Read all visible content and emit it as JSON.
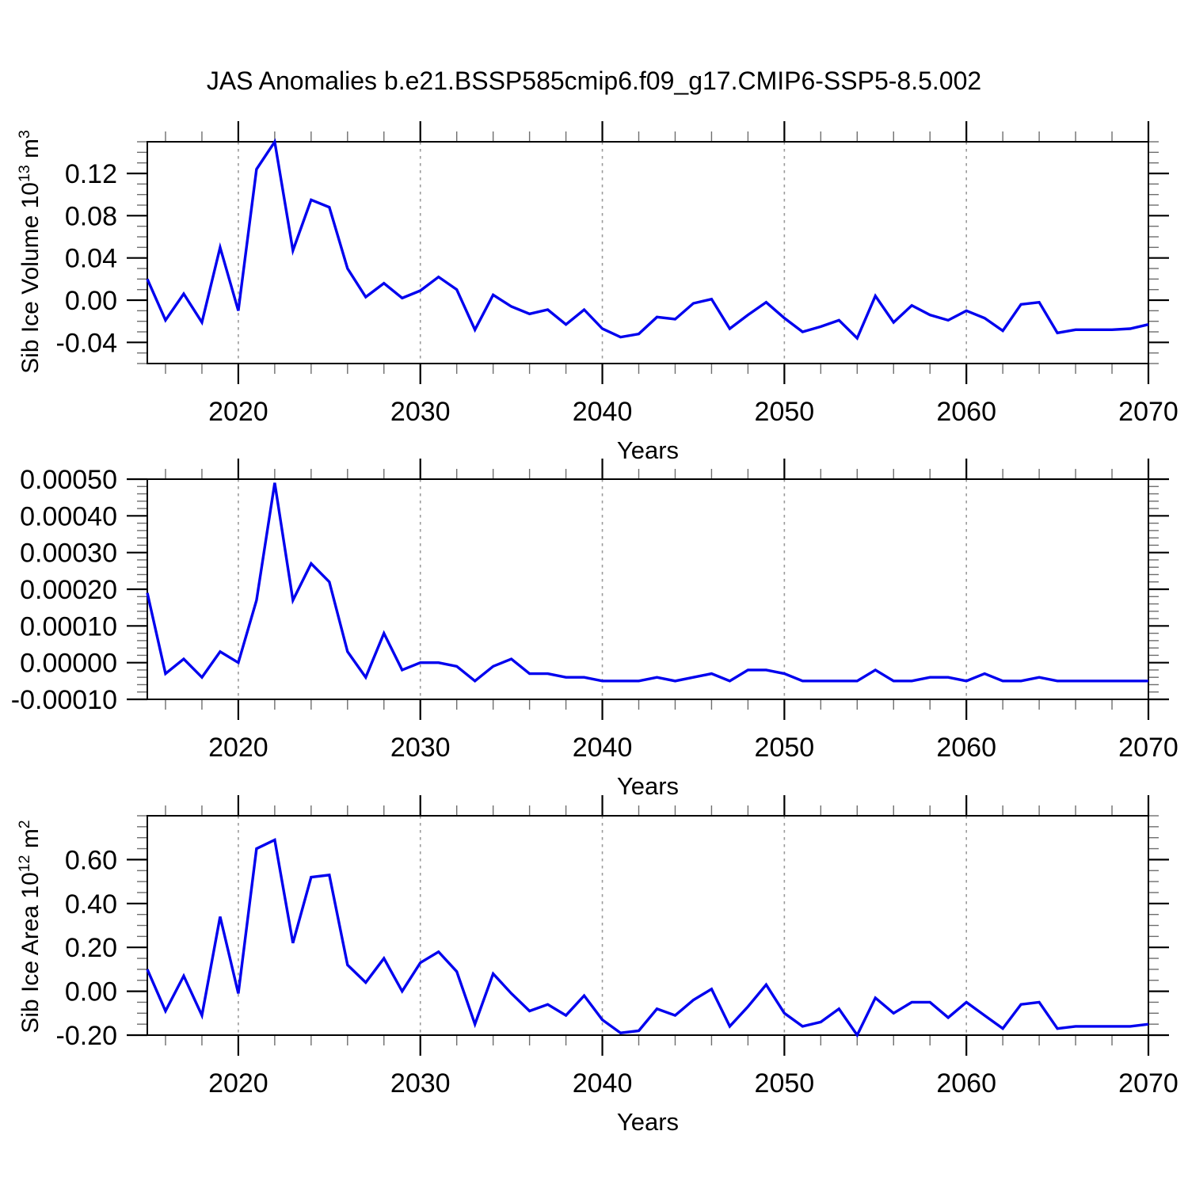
{
  "title": "JAS Anomalies b.e21.BSSP585cmip6.f09_g17.CMIP6-SSP5-8.5.002",
  "colors": {
    "line": "#0000ee",
    "axis": "#000000",
    "grid": "#9a9a9a",
    "minor_tick": "#6e6e6e"
  },
  "chart_data": {
    "type": "line",
    "title": "JAS Anomalies b.e21.BSSP585cmip6.f09_g17.CMIP6-SSP5-8.5.002",
    "xlabel": "Years",
    "xlim": [
      2015,
      2070
    ],
    "grid_x": [
      2020,
      2030,
      2040,
      2050,
      2060
    ],
    "xticks": {
      "major": [
        2020,
        2030,
        2040,
        2050,
        2060,
        2070
      ],
      "minor_from": 2016,
      "minor_step": 2
    },
    "legend": "none",
    "x": [
      2015,
      2016,
      2017,
      2018,
      2019,
      2020,
      2021,
      2022,
      2023,
      2024,
      2025,
      2026,
      2027,
      2028,
      2029,
      2030,
      2031,
      2032,
      2033,
      2034,
      2035,
      2036,
      2037,
      2038,
      2039,
      2040,
      2041,
      2042,
      2043,
      2044,
      2045,
      2046,
      2047,
      2048,
      2049,
      2050,
      2051,
      2052,
      2053,
      2054,
      2055,
      2056,
      2057,
      2058,
      2059,
      2060,
      2061,
      2062,
      2063,
      2064,
      2065,
      2066,
      2067,
      2068,
      2069,
      2070
    ],
    "panels": [
      {
        "name": "sib-ice-volume",
        "ylabel": {
          "base": "Sib Ice Volume 10",
          "exp": "13",
          "unit": " m",
          "unit_exp": "3"
        },
        "ylim": [
          -0.06,
          0.15
        ],
        "yticks": {
          "major": [
            -0.04,
            0.0,
            0.04,
            0.08,
            0.12
          ],
          "labels": [
            "-0.04",
            "0.00",
            "0.04",
            "0.08",
            "0.12"
          ],
          "minor_step": 0.01
        },
        "values": [
          0.02,
          -0.019,
          0.006,
          -0.021,
          0.05,
          -0.01,
          0.124,
          0.15,
          0.047,
          0.095,
          0.088,
          0.03,
          0.003,
          0.016,
          0.002,
          0.009,
          0.022,
          0.01,
          -0.028,
          0.005,
          -0.006,
          -0.013,
          -0.009,
          -0.023,
          -0.009,
          -0.027,
          -0.035,
          -0.032,
          -0.016,
          -0.018,
          -0.003,
          0.001,
          -0.027,
          -0.014,
          -0.002,
          -0.017,
          -0.03,
          -0.025,
          -0.019,
          -0.036,
          0.004,
          -0.021,
          -0.005,
          -0.014,
          -0.019,
          -0.01,
          -0.017,
          -0.029,
          -0.004,
          -0.002,
          -0.031,
          -0.028,
          -0.028,
          -0.028,
          -0.027,
          -0.023
        ]
      },
      {
        "name": "sib-ice-middle",
        "ylabel": null,
        "ylim": [
          -0.0001,
          0.0005
        ],
        "yticks": {
          "major": [
            -0.0001,
            0.0,
            0.0001,
            0.0002,
            0.0003,
            0.0004,
            0.0005
          ],
          "labels": [
            "-0.00010",
            "0.00000",
            "0.00010",
            "0.00020",
            "0.00030",
            "0.00040",
            "0.00050"
          ],
          "minor_step": 2e-05
        },
        "values": [
          0.00019,
          -3e-05,
          1e-05,
          -4e-05,
          3e-05,
          0.0,
          0.00017,
          0.00049,
          0.00017,
          0.00027,
          0.00022,
          3e-05,
          -4e-05,
          8e-05,
          -2e-05,
          0.0,
          0.0,
          -1e-05,
          -5e-05,
          -1e-05,
          1e-05,
          -3e-05,
          -3e-05,
          -4e-05,
          -4e-05,
          -5e-05,
          -5e-05,
          -5e-05,
          -4e-05,
          -5e-05,
          -4e-05,
          -3e-05,
          -5e-05,
          -2e-05,
          -2e-05,
          -3e-05,
          -5e-05,
          -5e-05,
          -5e-05,
          -5e-05,
          -2e-05,
          -5e-05,
          -5e-05,
          -4e-05,
          -4e-05,
          -5e-05,
          -3e-05,
          -5e-05,
          -5e-05,
          -4e-05,
          -5e-05,
          -5e-05,
          -5e-05,
          -5e-05,
          -5e-05,
          -5e-05
        ]
      },
      {
        "name": "sib-ice-area",
        "ylabel": {
          "base": "Sib Ice Area 10",
          "exp": "12",
          "unit": " m",
          "unit_exp": "2"
        },
        "ylim": [
          -0.2,
          0.8
        ],
        "yticks": {
          "major": [
            -0.2,
            0.0,
            0.2,
            0.4,
            0.6
          ],
          "labels": [
            "-0.20",
            "0.00",
            "0.20",
            "0.40",
            "0.60"
          ],
          "minor_step": 0.05
        },
        "values": [
          0.1,
          -0.09,
          0.07,
          -0.11,
          0.34,
          -0.01,
          0.65,
          0.69,
          0.22,
          0.52,
          0.53,
          0.12,
          0.04,
          0.15,
          0.0,
          0.13,
          0.18,
          0.09,
          -0.15,
          0.08,
          -0.01,
          -0.09,
          -0.06,
          -0.11,
          -0.02,
          -0.13,
          -0.19,
          -0.18,
          -0.08,
          -0.11,
          -0.04,
          0.01,
          -0.16,
          -0.07,
          0.03,
          -0.1,
          -0.16,
          -0.14,
          -0.08,
          -0.2,
          -0.03,
          -0.1,
          -0.05,
          -0.05,
          -0.12,
          -0.05,
          -0.11,
          -0.17,
          -0.06,
          -0.05,
          -0.17,
          -0.16,
          -0.16,
          -0.16,
          -0.16,
          -0.15
        ]
      }
    ]
  }
}
